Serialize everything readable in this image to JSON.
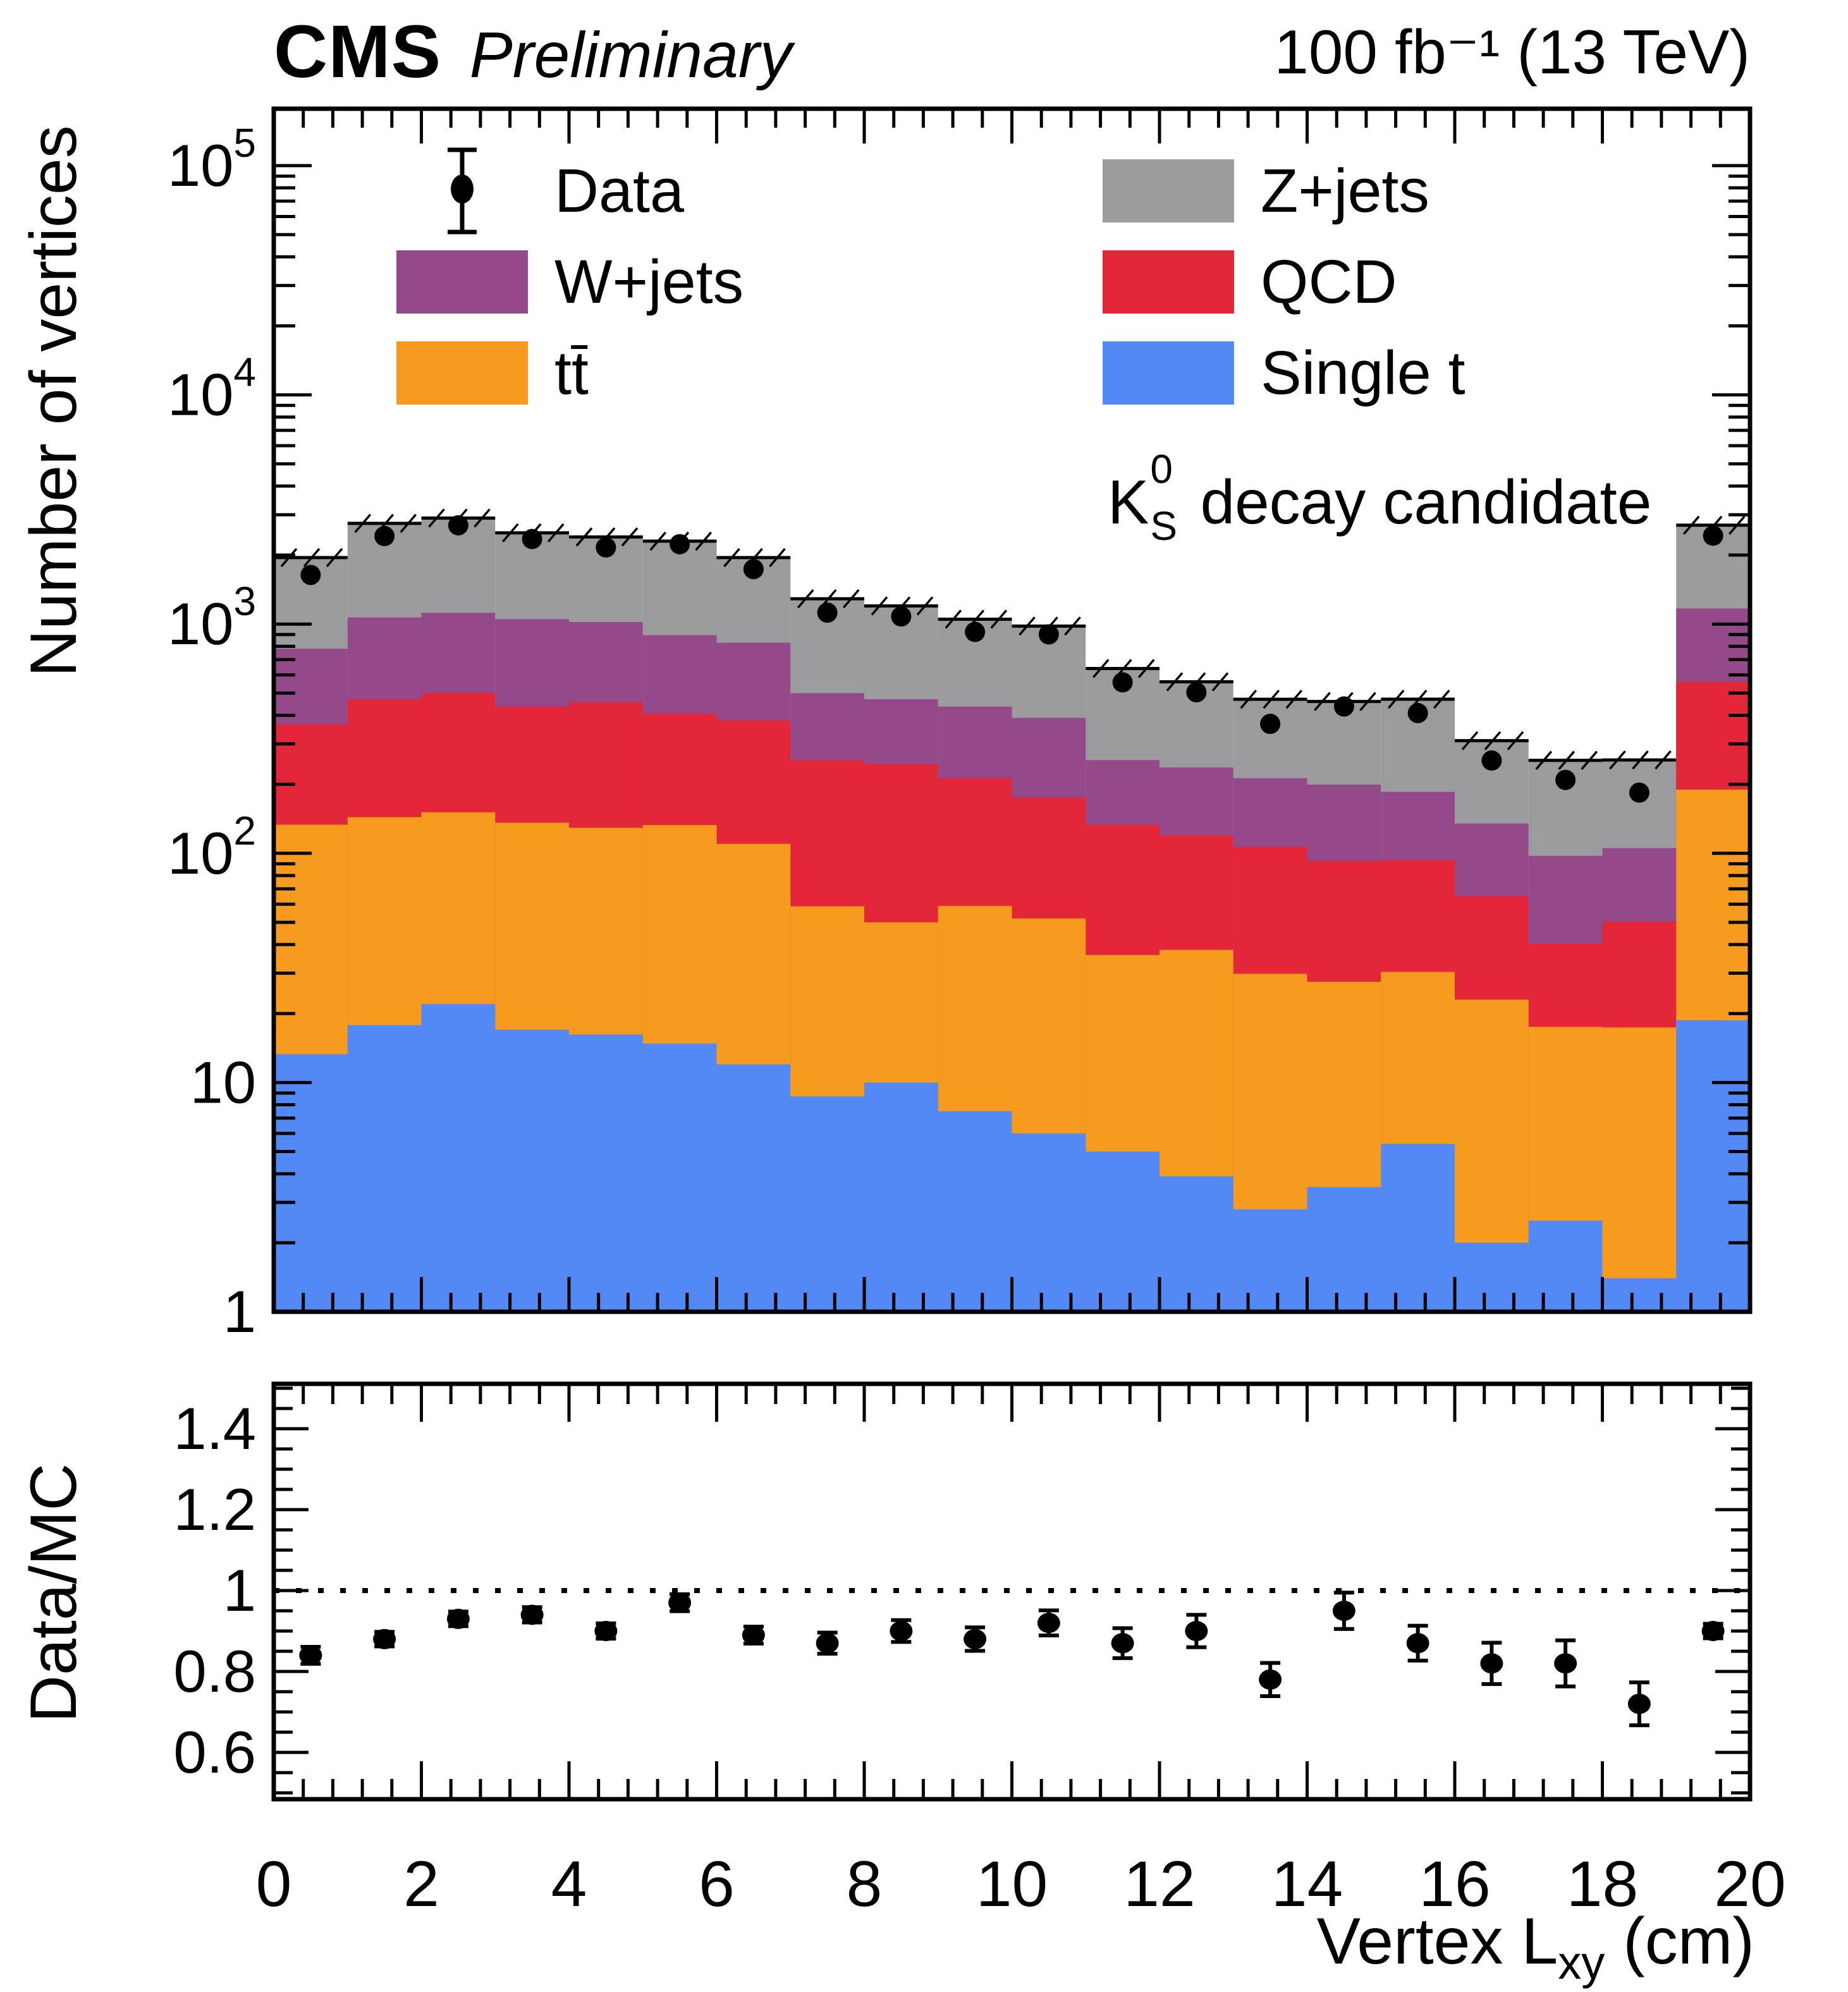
{
  "header": {
    "experiment": "CMS",
    "status": "Preliminary",
    "lumi": "100 fb⁻¹ (13 TeV)"
  },
  "axes": {
    "main_y_title": "Number of vertices",
    "ratio_y_title": "Data/MC",
    "x_title_main": "Vertex L",
    "x_title_sub": "xy",
    "x_title_unit": " (cm)"
  },
  "annotation": {
    "k": "K",
    "sup": "0",
    "sub": "S",
    "rest": " decay candidate"
  },
  "legend": {
    "items": [
      {
        "label": "Data",
        "marker": "black-point-with-error-bar",
        "color": "#000000"
      },
      {
        "label": "W+jets",
        "color": "#94498B"
      },
      {
        "label": "tt̄",
        "color": "#F79B1F"
      },
      {
        "label": "Z+jets",
        "color": "#9B9B9D"
      },
      {
        "label": "QCD",
        "color": "#E32638"
      },
      {
        "label": "Single t",
        "color": "#5389F5"
      }
    ]
  },
  "chart_data": {
    "type": "bar",
    "stacked": true,
    "log_y": true,
    "grid": false,
    "legend_position": "top-inside",
    "mc_uncertainty_band": "hatched",
    "xlabel": "Vertex L_xy (cm)",
    "ylabel": "Number of vertices",
    "ratio_ylabel": "Data/MC",
    "xlim": [
      0,
      20
    ],
    "ylim": [
      1,
      177000
    ],
    "bin_width": 1,
    "bin_centers": [
      0.5,
      1.5,
      2.5,
      3.5,
      4.5,
      5.5,
      6.5,
      7.5,
      8.5,
      9.5,
      10.5,
      11.5,
      12.5,
      13.5,
      14.5,
      15.5,
      16.5,
      17.5,
      18.5,
      19.5
    ],
    "xticks": [
      0,
      2,
      4,
      6,
      8,
      10,
      12,
      14,
      16,
      18,
      20
    ],
    "ytick_exponents": [
      0,
      1,
      2,
      3,
      4,
      5
    ],
    "series": [
      {
        "name": "Single t",
        "color": "#5389F5",
        "values": [
          13.3,
          17.8,
          22,
          17,
          16.2,
          14.8,
          12,
          8.7,
          10,
          7.5,
          6,
          5,
          3.9,
          2.8,
          3.5,
          5.4,
          2,
          2.5,
          1.4,
          18.7
        ]
      },
      {
        "name": "tt̄",
        "color": "#F79B1F",
        "values": [
          120,
          126,
          129,
          119,
          113,
          118,
          98,
          50,
          40,
          51.5,
          46,
          31,
          34,
          27,
          24,
          25,
          21,
          15,
          16,
          171
        ]
      },
      {
        "name": "QCD",
        "color": "#E32638",
        "values": [
          232,
          326,
          349,
          301,
          328,
          274,
          270,
          196,
          195,
          154,
          123,
          97,
          82,
          77,
          65,
          63,
          42,
          23,
          33,
          370
        ]
      },
      {
        "name": "W+jets",
        "color": "#94498B",
        "values": [
          415,
          600,
          620,
          613,
          563,
          488,
          450,
          245,
          225,
          224,
          215,
          122,
          117,
          106,
          107,
          92,
          70,
          57,
          55,
          610
        ]
      },
      {
        "name": "Z+jets",
        "color": "#9B9B9D",
        "values": [
          1170,
          1680,
          1780,
          1450,
          1380,
          1405,
          1120,
          790,
          730,
          613,
          590,
          385,
          323,
          257,
          260,
          285,
          175,
          157,
          150,
          1530
        ]
      }
    ],
    "data_points": {
      "name": "Data",
      "values": [
        1638,
        2420,
        2697,
        2350,
        2160,
        2231,
        1736,
        1122,
        1080,
        924,
        902,
        557,
        504,
        367,
        437,
        409,
        254,
        209,
        184,
        2430
      ],
      "errors": [
        40,
        49,
        52,
        48,
        46,
        47,
        42,
        33,
        33,
        30,
        30,
        24,
        22,
        19,
        21,
        20,
        16,
        14,
        14,
        49
      ]
    },
    "ratio": {
      "values": [
        0.84,
        0.88,
        0.93,
        0.94,
        0.9,
        0.97,
        0.89,
        0.87,
        0.9,
        0.88,
        0.92,
        0.87,
        0.9,
        0.78,
        0.95,
        0.87,
        0.82,
        0.82,
        0.72,
        0.9
      ],
      "errors": [
        0.021,
        0.018,
        0.018,
        0.019,
        0.019,
        0.021,
        0.021,
        0.026,
        0.027,
        0.029,
        0.031,
        0.037,
        0.04,
        0.041,
        0.045,
        0.043,
        0.051,
        0.057,
        0.053,
        0.018
      ],
      "ylim": [
        0.48,
        1.51
      ],
      "yticks": [
        0.6,
        0.8,
        1,
        1.2,
        1.4
      ],
      "ref_line": 1
    }
  }
}
